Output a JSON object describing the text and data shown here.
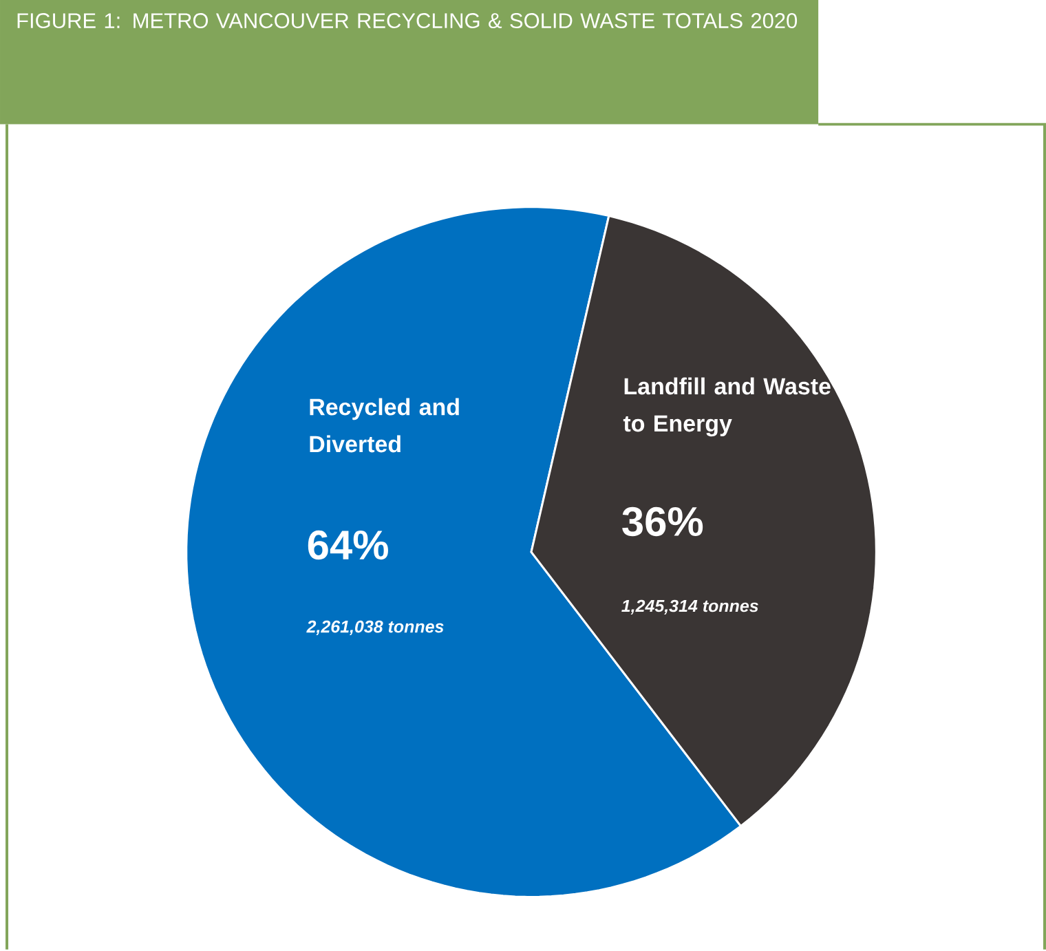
{
  "chart_data": {
    "type": "pie",
    "title": "FIGURE 1: METRO VANCOUVER RECYCLING & SOLID WASTE TOTALS 2020",
    "categories": [
      "Recycled and Diverted",
      "Landfill and Waste to Energy"
    ],
    "values": [
      64,
      36
    ],
    "value_labels": [
      "64%",
      "36%"
    ],
    "colors": [
      "#0070c0",
      "#3a3534"
    ],
    "annotations": [
      "2,261,038 tonnes",
      "1,245,314 tonnes"
    ]
  }
}
